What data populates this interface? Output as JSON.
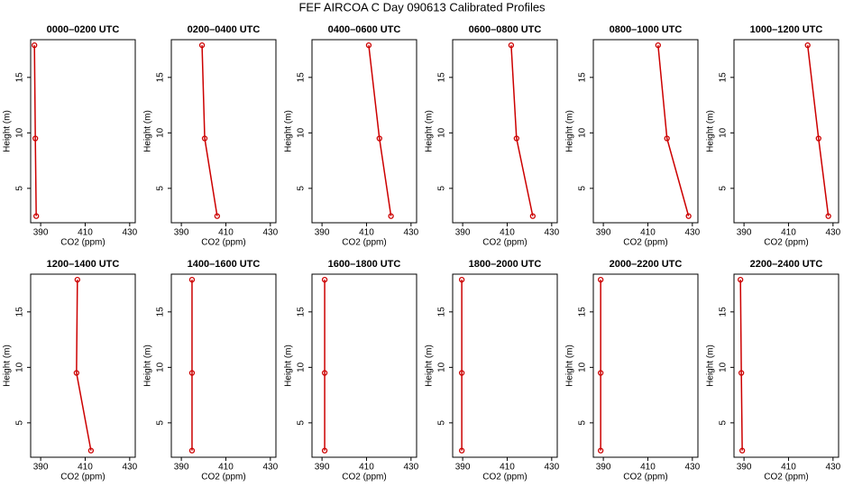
{
  "title": "FEF AIRCOA C  Day 090613  Calibrated Profiles",
  "chart_data": [
    {
      "type": "line",
      "title": "0000–0200 UTC",
      "xlabel": "CO2 (ppm)",
      "ylabel": "Height (m)",
      "color": "#cc0000",
      "x": [
        387.2,
        387.6,
        388.0
      ],
      "y": [
        17.9,
        9.5,
        2.5
      ],
      "xlim": [
        385.5,
        432.5
      ],
      "ylim": [
        1.9,
        18.4
      ],
      "xticks": [
        390,
        410,
        430
      ],
      "yticks": [
        5,
        10,
        15
      ]
    },
    {
      "type": "line",
      "title": "0200–0400 UTC",
      "xlabel": "CO2 (ppm)",
      "ylabel": "Height (m)",
      "color": "#cc0000",
      "x": [
        399.3,
        400.5,
        406.1
      ],
      "y": [
        17.9,
        9.5,
        2.5
      ],
      "xlim": [
        385.5,
        432.5
      ],
      "ylim": [
        1.9,
        18.4
      ],
      "xticks": [
        390,
        410,
        430
      ],
      "yticks": [
        5,
        10,
        15
      ]
    },
    {
      "type": "line",
      "title": "0400–0600 UTC",
      "xlabel": "CO2 (ppm)",
      "ylabel": "Height (m)",
      "color": "#cc0000",
      "x": [
        411.0,
        415.8,
        421.0
      ],
      "y": [
        17.9,
        9.5,
        2.5
      ],
      "xlim": [
        385.5,
        432.5
      ],
      "ylim": [
        1.9,
        18.4
      ],
      "xticks": [
        390,
        410,
        430
      ],
      "yticks": [
        5,
        10,
        15
      ]
    },
    {
      "type": "line",
      "title": "0600–0800 UTC",
      "xlabel": "CO2 (ppm)",
      "ylabel": "Height (m)",
      "color": "#cc0000",
      "x": [
        411.8,
        414.2,
        421.5
      ],
      "y": [
        17.9,
        9.5,
        2.5
      ],
      "xlim": [
        385.5,
        432.5
      ],
      "ylim": [
        1.9,
        18.4
      ],
      "xticks": [
        390,
        410,
        430
      ],
      "yticks": [
        5,
        10,
        15
      ]
    },
    {
      "type": "line",
      "title": "0800–1000 UTC",
      "xlabel": "CO2 (ppm)",
      "ylabel": "Height (m)",
      "color": "#cc0000",
      "x": [
        414.6,
        418.6,
        428.3
      ],
      "y": [
        17.9,
        9.5,
        2.5
      ],
      "xlim": [
        385.5,
        432.5
      ],
      "ylim": [
        1.9,
        18.4
      ],
      "xticks": [
        390,
        410,
        430
      ],
      "yticks": [
        5,
        10,
        15
      ]
    },
    {
      "type": "line",
      "title": "1000–1200 UTC",
      "xlabel": "CO2 (ppm)",
      "ylabel": "Height (m)",
      "color": "#cc0000",
      "x": [
        418.6,
        423.5,
        427.9
      ],
      "y": [
        17.9,
        9.5,
        2.5
      ],
      "xlim": [
        385.5,
        432.5
      ],
      "ylim": [
        1.9,
        18.4
      ],
      "xticks": [
        390,
        410,
        430
      ],
      "yticks": [
        5,
        10,
        15
      ]
    },
    {
      "type": "line",
      "title": "1200–1400 UTC",
      "xlabel": "CO2 (ppm)",
      "ylabel": "Height (m)",
      "color": "#cc0000",
      "x": [
        406.5,
        406.1,
        412.6
      ],
      "y": [
        17.9,
        9.5,
        2.5
      ],
      "xlim": [
        385.5,
        432.5
      ],
      "ylim": [
        1.9,
        18.4
      ],
      "xticks": [
        390,
        410,
        430
      ],
      "yticks": [
        5,
        10,
        15
      ]
    },
    {
      "type": "line",
      "title": "1400–1600 UTC",
      "xlabel": "CO2 (ppm)",
      "ylabel": "Height (m)",
      "color": "#cc0000",
      "x": [
        394.8,
        394.8,
        394.8
      ],
      "y": [
        17.9,
        9.5,
        2.5
      ],
      "xlim": [
        385.5,
        432.5
      ],
      "ylim": [
        1.9,
        18.4
      ],
      "xticks": [
        390,
        410,
        430
      ],
      "yticks": [
        5,
        10,
        15
      ]
    },
    {
      "type": "line",
      "title": "1600–1800 UTC",
      "xlabel": "CO2 (ppm)",
      "ylabel": "Height (m)",
      "color": "#cc0000",
      "x": [
        391.2,
        391.2,
        391.2
      ],
      "y": [
        17.9,
        9.5,
        2.5
      ],
      "xlim": [
        385.5,
        432.5
      ],
      "ylim": [
        1.9,
        18.4
      ],
      "xticks": [
        390,
        410,
        430
      ],
      "yticks": [
        5,
        10,
        15
      ]
    },
    {
      "type": "line",
      "title": "1800–2000 UTC",
      "xlabel": "CO2 (ppm)",
      "ylabel": "Height (m)",
      "color": "#cc0000",
      "x": [
        389.6,
        389.6,
        389.6
      ],
      "y": [
        17.9,
        9.5,
        2.5
      ],
      "xlim": [
        385.5,
        432.5
      ],
      "ylim": [
        1.9,
        18.4
      ],
      "xticks": [
        390,
        410,
        430
      ],
      "yticks": [
        5,
        10,
        15
      ]
    },
    {
      "type": "line",
      "title": "2000–2200 UTC",
      "xlabel": "CO2 (ppm)",
      "ylabel": "Height (m)",
      "color": "#cc0000",
      "x": [
        388.8,
        388.8,
        388.8
      ],
      "y": [
        17.9,
        9.5,
        2.5
      ],
      "xlim": [
        385.5,
        432.5
      ],
      "ylim": [
        1.9,
        18.4
      ],
      "xticks": [
        390,
        410,
        430
      ],
      "yticks": [
        5,
        10,
        15
      ]
    },
    {
      "type": "line",
      "title": "2200–2400 UTC",
      "xlabel": "CO2 (ppm)",
      "ylabel": "Height (m)",
      "color": "#cc0000",
      "x": [
        388.4,
        388.8,
        389.2
      ],
      "y": [
        17.9,
        9.5,
        2.5
      ],
      "xlim": [
        385.5,
        432.5
      ],
      "ylim": [
        1.9,
        18.4
      ],
      "xticks": [
        390,
        410,
        430
      ],
      "yticks": [
        5,
        10,
        15
      ]
    }
  ]
}
